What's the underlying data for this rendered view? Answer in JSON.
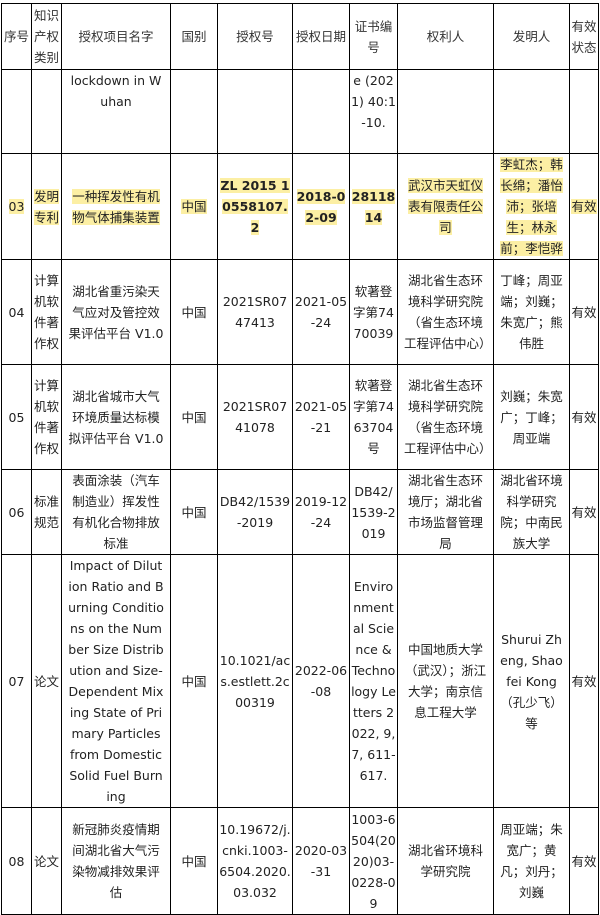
{
  "headers": [
    "序号",
    "知识产权类别",
    "授权项目名字",
    "国别",
    "授权号",
    "授权日期",
    "证书编号",
    "权利人",
    "发明人",
    "有效状态"
  ],
  "rows": [
    {
      "no": "",
      "type": "",
      "name": "lockdown in Wuhan",
      "country": "",
      "number": "",
      "date": "",
      "cert": "e (2021) 40:1-10.",
      "holder": "",
      "inventor": "",
      "status": "",
      "highlight": false
    },
    {
      "no": "03",
      "type": "发明专利",
      "name": "一种挥发性有机物气体捕集装置",
      "country": "中国",
      "number": "ZL 2015 1 0558107.2",
      "date": "2018-02-09",
      "cert": "2811814",
      "holder": "武汉市天虹仪表有限责任公司",
      "inventor": "李虹杰；韩长绵；潘怡沛；张培生；林永前；李恺骅",
      "status": "有效",
      "highlight": true
    },
    {
      "no": "04",
      "type": "计算机软件著作权",
      "name": "湖北省重污染天气应对及管控效果评估平台 V1.0",
      "country": "中国",
      "number": "2021SR0747413",
      "date": "2021-05-24",
      "cert": "软著登字第7470039",
      "holder": "湖北省生态环境科学研究院（省生态环境工程评估中心）",
      "inventor": "丁峰；周亚端；刘巍；朱宽广；熊伟胜",
      "status": "有效",
      "highlight": false
    },
    {
      "no": "05",
      "type": "计算机软件著作权",
      "name": "湖北省城市大气环境质量达标模拟评估平台 V1.0",
      "country": "中国",
      "number": "2021SR0741078",
      "date": "2021-05-21",
      "cert": "软著登字第7463704号",
      "holder": "湖北省生态环境科学研究院（省生态环境工程评估中心）",
      "inventor": "刘巍；朱宽广；丁峰；周亚端",
      "status": "有效",
      "highlight": false
    },
    {
      "no": "06",
      "type": "标准规范",
      "name": "表面涂装（汽车制造业）挥发性有机化合物排放标准",
      "country": "中国",
      "number": "DB42/1539-2019",
      "date": "2019-12-24",
      "cert": "DB42/1539-2019",
      "holder": "湖北省生态环境厅；湖北省市场监督管理局",
      "inventor": "湖北省环境科学研究院；中南民族大学",
      "status": "有效",
      "highlight": false
    },
    {
      "no": "07",
      "type": "论文",
      "name": "Impact of Dilution Ratio and Burning Conditions on the Number Size Distribution and Size-Dependent Mixing State of Primary Particles from Domestic Solid Fuel Burning",
      "country": "中国",
      "number": "10.1021/acs.estlett.2c00319",
      "date": "2022-06-08",
      "cert": "Environmental Science & Technology Letters 2022, 9, 7, 611-617.",
      "holder": "中国地质大学（武汉）；浙江大学；南京信息工程大学",
      "inventor": "Shurui Zheng, Shaofei Kong（孔少飞）等",
      "status": "有效",
      "highlight": false
    },
    {
      "no": "08",
      "type": "论文",
      "name": "新冠肺炎疫情期间湖北省大气污染物减排效果评估",
      "country": "中国",
      "number": "10.19672/j.cnki.1003-6504.2020.03.032",
      "date": "2020-03-31",
      "cert": "1003-6504(2020)03-0228-09",
      "holder": "湖北省环境科学研究院",
      "inventor": "周亚端；朱宽广；黄凡；刘丹；刘巍",
      "status": "有效",
      "highlight": false
    }
  ]
}
